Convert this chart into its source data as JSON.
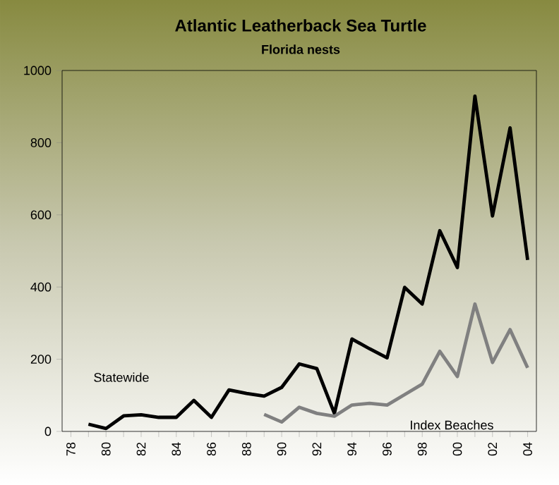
{
  "chart_data": {
    "type": "line",
    "title": "Atlantic Leatherback Sea Turtle",
    "subtitle": "Florida nests",
    "categories": [
      "78",
      null,
      "80",
      null,
      "82",
      null,
      "84",
      null,
      "86",
      null,
      "88",
      null,
      "90",
      null,
      "92",
      null,
      "94",
      null,
      "96",
      null,
      "98",
      null,
      "00",
      null,
      "02",
      null,
      "04"
    ],
    "series": [
      {
        "name": "Statewide",
        "color": "#000000",
        "values": [
          null,
          20,
          8,
          43,
          46,
          39,
          39,
          86,
          39,
          115,
          105,
          98,
          122,
          187,
          174,
          50,
          256,
          229,
          204,
          399,
          353,
          556,
          454,
          929,
          597,
          841,
          475
        ]
      },
      {
        "name": "Index Beaches",
        "color": "#808080",
        "values": [
          null,
          null,
          null,
          null,
          null,
          null,
          null,
          null,
          null,
          null,
          null,
          47,
          26,
          67,
          50,
          42,
          73,
          78,
          73,
          102,
          131,
          222,
          152,
          353,
          191,
          282,
          176
        ]
      }
    ],
    "ylim": [
      0,
      1000
    ],
    "yticks": [
      0,
      200,
      400,
      600,
      800,
      1000
    ],
    "grid": false,
    "legend": false,
    "marker": "none",
    "line_style": "solid"
  }
}
